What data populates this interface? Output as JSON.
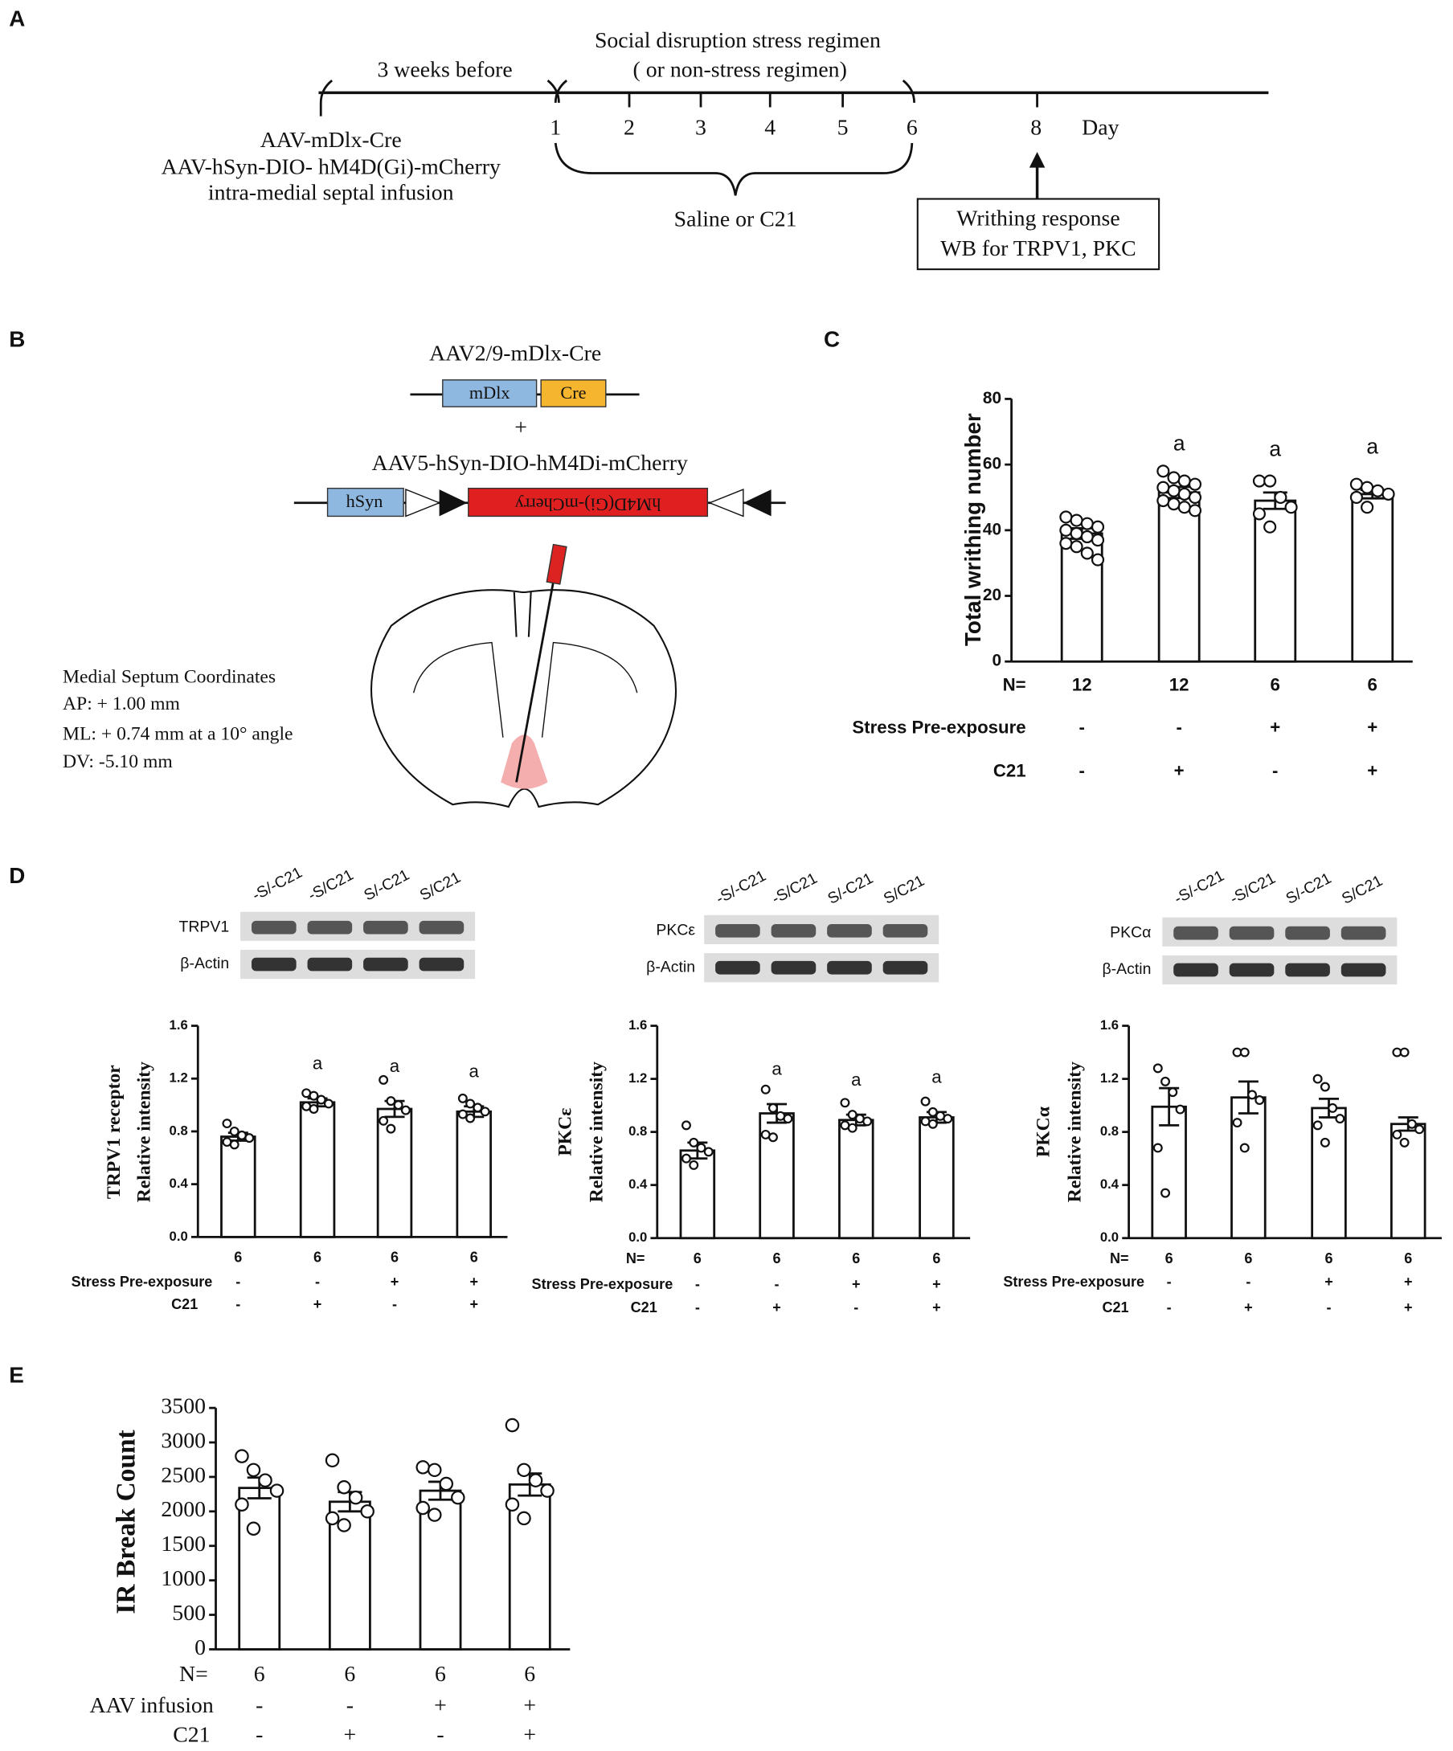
{
  "panel_labels": [
    "A",
    "B",
    "C",
    "D",
    "E"
  ],
  "timeline": {
    "before": "3 weeks before",
    "regimen": "Social disruption stress regimen",
    "regimen_alt": "( or non-stress regimen)",
    "days": [
      1,
      2,
      3,
      4,
      5,
      6,
      8
    ],
    "day_label": "Day",
    "infusion": [
      "AAV-mDlx-Cre",
      "AAV-hSyn-DIO- hM4D(Gi)-mCherry",
      "intra-medial septal infusion"
    ],
    "treatment": "Saline or C21",
    "outcome": [
      "Writhing response",
      "WB for TRPV1, PKC"
    ]
  },
  "construct": {
    "virus1": "AAV2/9-mDlx-Cre",
    "parts1": [
      "mDlx",
      "Cre"
    ],
    "plus": "+",
    "virus2": "AAV5-hSyn-DIO-hM4Di-mCherry",
    "parts2": [
      "hSyn",
      "hM4D(Gi)-mCherry"
    ],
    "coords": [
      "Medial Septum Coordinates",
      "AP: + 1.00 mm",
      "ML: + 0.74 mm at a 10° angle",
      "DV: -5.10 mm"
    ]
  },
  "blots": [
    {
      "lanes": [
        "-S/-C21",
        "-S/C21",
        "S/-C21",
        "S/C21"
      ],
      "target": "TRPV1",
      "control": "β-Actin"
    },
    {
      "lanes": [
        "-S/-C21",
        "-S/C21",
        "S/-C21",
        "S/C21"
      ],
      "target": "PKCε",
      "control": "β-Actin"
    },
    {
      "lanes": [
        "-S/-C21",
        "-S/C21",
        "S/-C21",
        "S/C21"
      ],
      "target": "PKCα",
      "control": "β-Actin"
    }
  ],
  "chart_data": [
    {
      "type": "bar",
      "y_label": [
        "Total writhing number"
      ],
      "color": "#ffffff",
      "values": [
        39,
        51.5,
        49,
        51
      ],
      "errors": [
        1.6,
        1.7,
        2.5,
        1.3
      ],
      "points": [
        [
          44,
          43,
          42,
          41,
          40,
          39,
          38,
          37,
          36,
          35,
          33,
          31
        ],
        [
          58,
          56,
          55,
          54,
          53,
          52,
          51,
          50,
          49,
          48,
          47,
          46
        ],
        [
          55,
          55,
          50,
          47,
          45,
          41
        ],
        [
          54,
          53,
          52,
          51,
          50,
          47
        ]
      ],
      "sig_labels": [
        null,
        "a",
        "a",
        "a"
      ],
      "ylim": [
        0,
        80
      ],
      "yticks": [
        0,
        20,
        40,
        60,
        80
      ],
      "rows": [
        {
          "label": "N=",
          "values": [
            12,
            12,
            6,
            6
          ]
        },
        {
          "label": "Stress Pre-exposure",
          "values": [
            "-",
            "-",
            "+",
            "+"
          ]
        },
        {
          "label": "C21",
          "values": [
            "-",
            "+",
            "-",
            "+"
          ]
        }
      ]
    },
    {
      "type": "bar",
      "y_label": [
        "TRPV1 receptor",
        "Relative intensity"
      ],
      "color": "#ffffff",
      "values": [
        0.76,
        1.02,
        0.97,
        0.95
      ],
      "errors": [
        0.03,
        0.03,
        0.06,
        0.04
      ],
      "points": [
        [
          0.86,
          0.8,
          0.77,
          0.75,
          0.72,
          0.7
        ],
        [
          1.09,
          1.07,
          1.04,
          1.01,
          0.99,
          0.97
        ],
        [
          1.19,
          1.03,
          1.0,
          0.96,
          0.88,
          0.82
        ],
        [
          1.05,
          1.01,
          0.98,
          0.95,
          0.93,
          0.9
        ]
      ],
      "sig_labels": [
        null,
        "a",
        "a",
        "a"
      ],
      "ylim": [
        0,
        1.6
      ],
      "yticks": [
        {
          "value": 0,
          "label": "0.0"
        },
        0.4,
        0.8,
        1.2,
        1.6
      ],
      "rows": [
        {
          "label": null,
          "values": [
            6,
            6,
            6,
            6
          ]
        },
        {
          "label": "Stress Pre-exposure",
          "values": [
            "-",
            "-",
            "+",
            "+"
          ]
        },
        {
          "label": "C21",
          "values": [
            "-",
            "+",
            "-",
            "+"
          ]
        }
      ]
    },
    {
      "type": "bar",
      "y_label": [
        "PKCε",
        "Relative intensity"
      ],
      "color": "#ffffff",
      "values": [
        0.66,
        0.94,
        0.89,
        0.91
      ],
      "errors": [
        0.06,
        0.07,
        0.04,
        0.04
      ],
      "points": [
        [
          0.85,
          0.72,
          0.68,
          0.65,
          0.6,
          0.55
        ],
        [
          1.12,
          0.98,
          0.92,
          0.9,
          0.78,
          0.76
        ],
        [
          1.02,
          0.93,
          0.9,
          0.88,
          0.85,
          0.83
        ],
        [
          1.03,
          0.95,
          0.92,
          0.9,
          0.88,
          0.86
        ]
      ],
      "sig_labels": [
        null,
        "a",
        "a",
        "a"
      ],
      "ylim": [
        0,
        1.6
      ],
      "yticks": [
        {
          "value": 0,
          "label": "0.0"
        },
        0.4,
        0.8,
        1.2,
        1.6
      ],
      "rows": [
        {
          "label": "N=",
          "values": [
            6,
            6,
            6,
            6
          ]
        },
        {
          "label": "Stress Pre-exposure",
          "values": [
            "-",
            "-",
            "+",
            "+"
          ]
        },
        {
          "label": "C21",
          "values": [
            "-",
            "+",
            "-",
            "+"
          ]
        }
      ]
    },
    {
      "type": "bar",
      "y_label": [
        "PKCα",
        "Relative intensity"
      ],
      "color": "#ffffff",
      "values": [
        0.99,
        1.06,
        0.98,
        0.86
      ],
      "errors": [
        0.14,
        0.12,
        0.07,
        0.05
      ],
      "points": [
        [
          1.28,
          1.18,
          1.1,
          0.97,
          0.68,
          0.34
        ],
        [
          1.4,
          1.4,
          1.08,
          1.04,
          0.87,
          0.68
        ],
        [
          1.2,
          1.14,
          0.98,
          0.9,
          0.85,
          0.72
        ],
        [
          1.4,
          1.4,
          0.86,
          0.82,
          0.78,
          0.72
        ]
      ],
      "sig_labels": [
        null,
        null,
        null,
        null
      ],
      "ylim": [
        0,
        1.6
      ],
      "yticks": [
        {
          "value": 0,
          "label": "0.0"
        },
        0.4,
        0.8,
        1.2,
        1.6
      ],
      "rows": [
        {
          "label": "N=",
          "values": [
            6,
            6,
            6,
            6
          ]
        },
        {
          "label": "Stress Pre-exposure",
          "values": [
            "-",
            "-",
            "+",
            "+"
          ]
        },
        {
          "label": "C21",
          "values": [
            "-",
            "+",
            "-",
            "+"
          ]
        }
      ]
    },
    {
      "type": "bar",
      "y_label": [
        "IR Break Count"
      ],
      "color": "#ffffff",
      "values": [
        2340,
        2140,
        2300,
        2390
      ],
      "errors": [
        150,
        140,
        130,
        160
      ],
      "points": [
        [
          2800,
          2600,
          2450,
          2300,
          2100,
          1750
        ],
        [
          2740,
          2350,
          2200,
          2000,
          1900,
          1800
        ],
        [
          2640,
          2600,
          2400,
          2200,
          2050,
          1950
        ],
        [
          3250,
          2600,
          2450,
          2300,
          2100,
          1900
        ]
      ],
      "sig_labels": [
        null,
        null,
        null,
        null
      ],
      "ylim": [
        0,
        3500
      ],
      "yticks": [
        0,
        500,
        1000,
        1500,
        2000,
        2500,
        3000,
        3500
      ],
      "rows": [
        {
          "label": "N=",
          "values": [
            6,
            6,
            6,
            6
          ]
        },
        {
          "label": "AAV infusion",
          "values": [
            "-",
            "-",
            "+",
            "+"
          ]
        },
        {
          "label": "C21",
          "values": [
            "-",
            "+",
            "-",
            "+"
          ]
        }
      ]
    }
  ]
}
